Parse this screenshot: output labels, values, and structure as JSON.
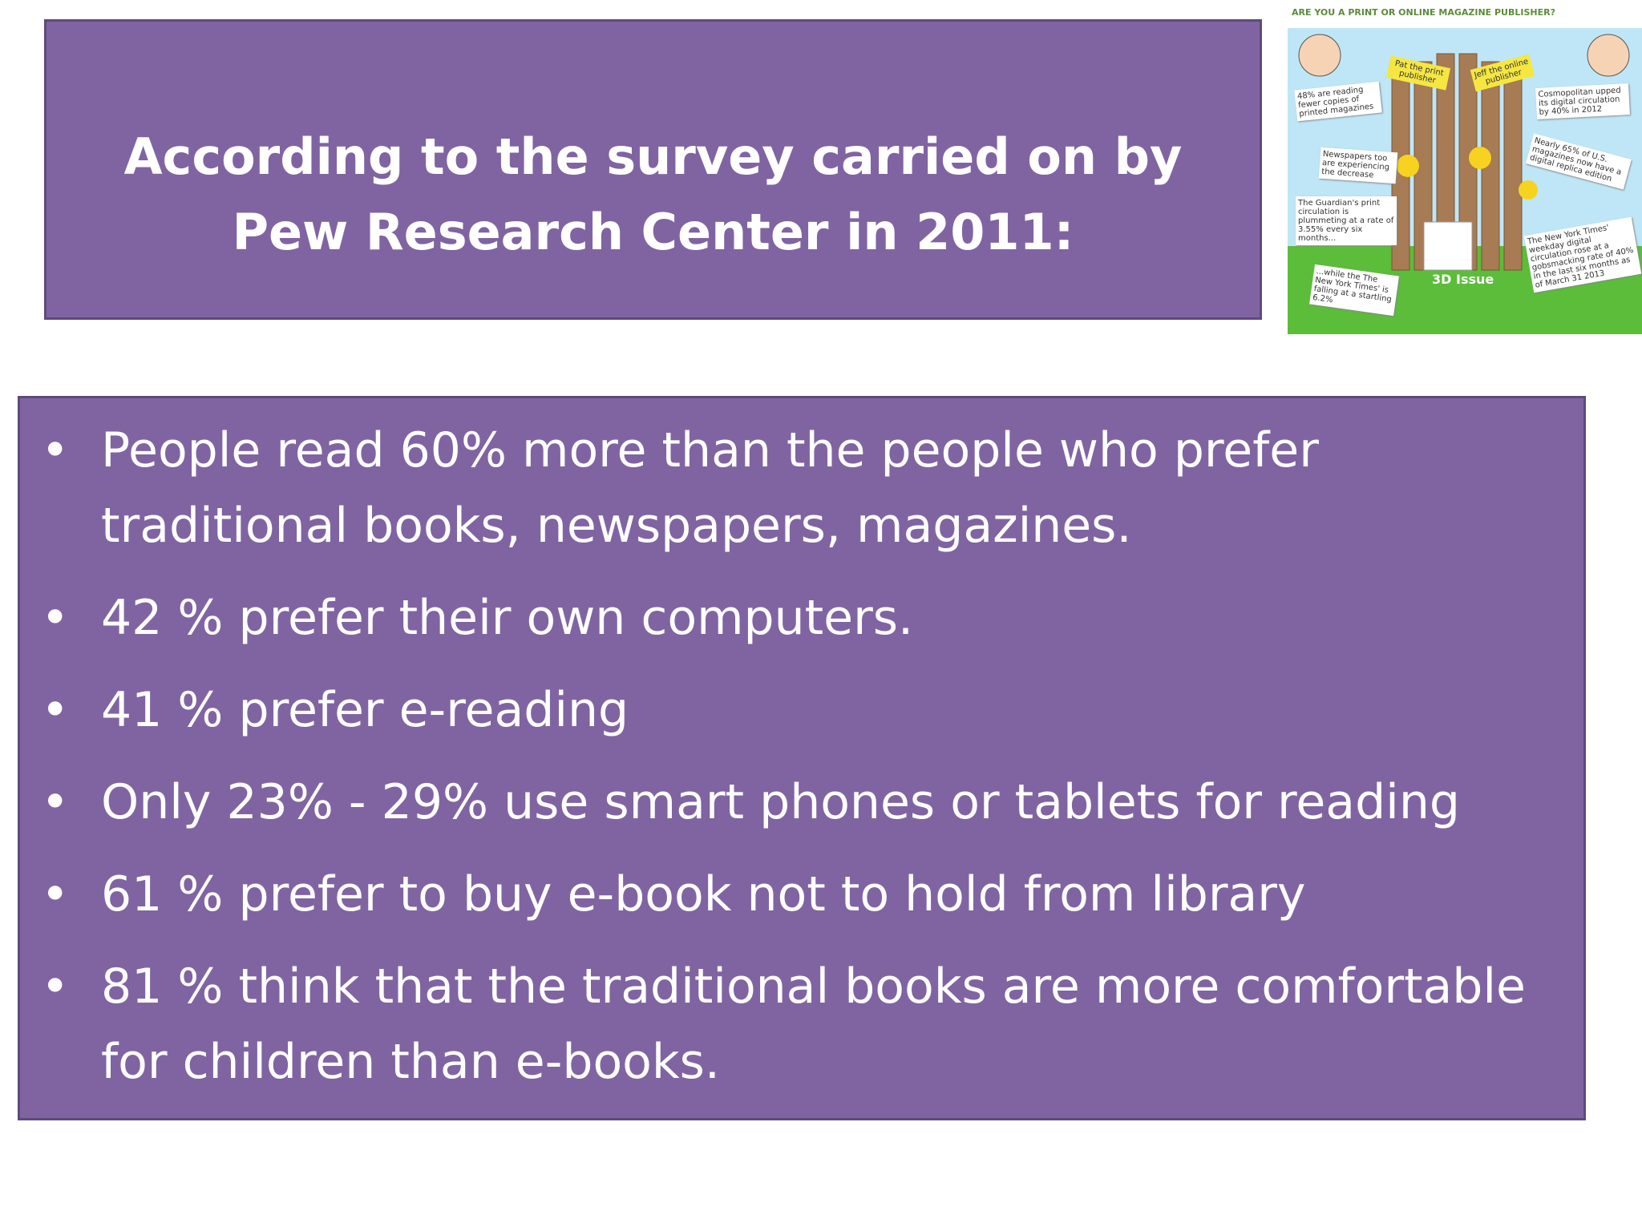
{
  "header": {
    "title": "According to the survey carried on by Pew Research Center in 2011:"
  },
  "bullets": [
    "People read 60% more than the people who prefer traditional books, newspapers, magazines.",
    "42 % prefer their own computers.",
    "41 % prefer e-reading",
    "Only 23% - 29% use smart phones or tablets for reading",
    "61 % prefer to buy e-book not to hold from library",
    "81 % think that the traditional books are more comfortable for children than e-books."
  ],
  "infographic": {
    "title": "ARE YOU A PRINT OR ONLINE MAGAZINE PUBLISHER?",
    "signs": [
      "Pat the print publisher",
      "Jeff the online publisher"
    ],
    "notes": [
      "48% are reading fewer copies of printed magazines",
      "Newspapers too are experiencing the decrease",
      "The Guardian's print circulation is plummeting at a rate of 3.55% every six months...",
      "...while the The New York Times' is falling at a startling 6.2%",
      "Cosmopolitan upped its digital circulation by 40% in 2012",
      "Nearly 65% of U.S. magazines now have a digital replica edition",
      "The New York Times' weekday digital circulation rose at a gobsmacking rate of 40% in the last six months as of March 31 2013"
    ],
    "brand": "3D Issue"
  }
}
